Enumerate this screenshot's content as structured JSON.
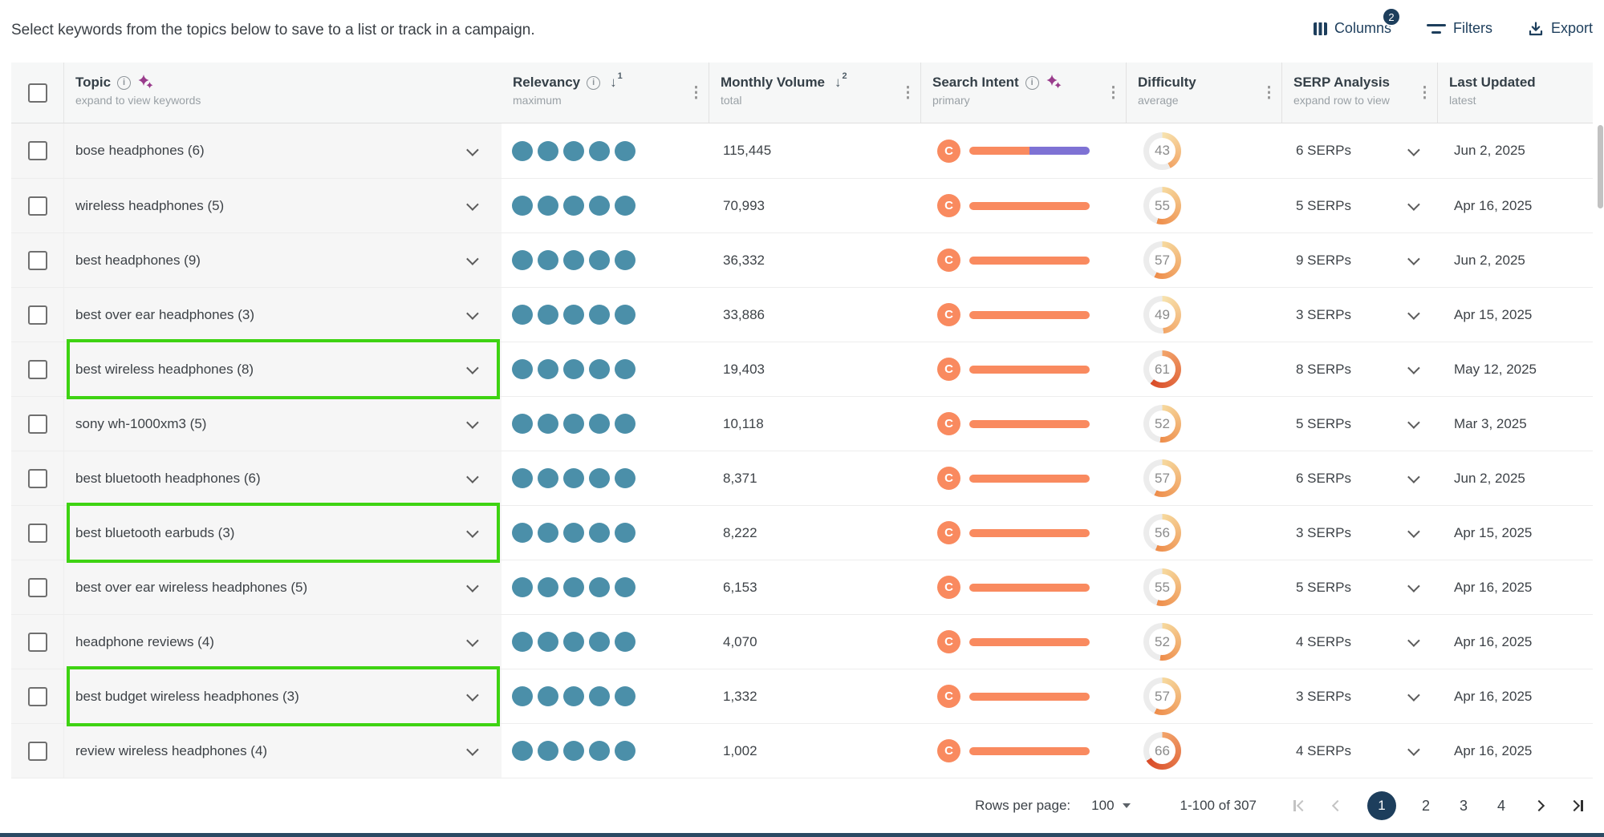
{
  "intro": "Select keywords from the topics below to save to a list or track in a campaign.",
  "toolbar": {
    "columns": {
      "label": "Columns",
      "badge": "2",
      "icon": "columns-icon"
    },
    "filters": {
      "label": "Filters",
      "icon": "filter-icon"
    },
    "export": {
      "label": "Export",
      "icon": "download-icon"
    }
  },
  "table": {
    "header": {
      "topic": {
        "label": "Topic",
        "subtitle": "expand to view keywords",
        "icons": [
          "info-icon",
          "sparkles-icon"
        ]
      },
      "relevancy": {
        "label": "Relevancy",
        "subtitle": "maximum",
        "icons": [
          "info-icon",
          "sort-desc-arrow-icon"
        ],
        "sort_rank": "1"
      },
      "volume": {
        "label": "Monthly Volume",
        "subtitle": "total",
        "icons": [
          "sort-desc-arrow-icon"
        ],
        "sort_rank": "2"
      },
      "intent": {
        "label": "Search Intent",
        "subtitle": "primary",
        "icons": [
          "info-icon",
          "sparkles-icon"
        ]
      },
      "difficulty": {
        "label": "Difficulty",
        "subtitle": "average"
      },
      "serp": {
        "label": "SERP Analysis",
        "subtitle": "expand row to view"
      },
      "updated": {
        "label": "Last Updated",
        "subtitle": "latest"
      }
    },
    "rows": [
      {
        "topic": "bose headphones (6)",
        "relevancy_dots": 5,
        "volume": "115,445",
        "intent_primary": "C",
        "intent_segments": [
          {
            "color": "orange",
            "pct": 50
          },
          {
            "color": "purple",
            "pct": 50
          }
        ],
        "difficulty": 43,
        "serps": "6 SERPs",
        "updated": "Jun 2, 2025",
        "highlighted": false
      },
      {
        "topic": "wireless headphones (5)",
        "relevancy_dots": 5,
        "volume": "70,993",
        "intent_primary": "C",
        "intent_segments": [
          {
            "color": "orange",
            "pct": 100
          }
        ],
        "difficulty": 55,
        "serps": "5 SERPs",
        "updated": "Apr 16, 2025",
        "highlighted": false
      },
      {
        "topic": "best headphones (9)",
        "relevancy_dots": 5,
        "volume": "36,332",
        "intent_primary": "C",
        "intent_segments": [
          {
            "color": "orange",
            "pct": 100
          }
        ],
        "difficulty": 57,
        "serps": "9 SERPs",
        "updated": "Jun 2, 2025",
        "highlighted": false
      },
      {
        "topic": "best over ear headphones (3)",
        "relevancy_dots": 5,
        "volume": "33,886",
        "intent_primary": "C",
        "intent_segments": [
          {
            "color": "orange",
            "pct": 100
          }
        ],
        "difficulty": 49,
        "serps": "3 SERPs",
        "updated": "Apr 15, 2025",
        "highlighted": false
      },
      {
        "topic": "best wireless headphones (8)",
        "relevancy_dots": 5,
        "volume": "19,403",
        "intent_primary": "C",
        "intent_segments": [
          {
            "color": "orange",
            "pct": 100
          }
        ],
        "difficulty": 61,
        "serps": "8 SERPs",
        "updated": "May 12, 2025",
        "highlighted": true
      },
      {
        "topic": "sony wh-1000xm3 (5)",
        "relevancy_dots": 5,
        "volume": "10,118",
        "intent_primary": "C",
        "intent_segments": [
          {
            "color": "orange",
            "pct": 100
          }
        ],
        "difficulty": 52,
        "serps": "5 SERPs",
        "updated": "Mar 3, 2025",
        "highlighted": false
      },
      {
        "topic": "best bluetooth headphones (6)",
        "relevancy_dots": 5,
        "volume": "8,371",
        "intent_primary": "C",
        "intent_segments": [
          {
            "color": "orange",
            "pct": 100
          }
        ],
        "difficulty": 57,
        "serps": "6 SERPs",
        "updated": "Jun 2, 2025",
        "highlighted": false
      },
      {
        "topic": "best bluetooth earbuds (3)",
        "relevancy_dots": 5,
        "volume": "8,222",
        "intent_primary": "C",
        "intent_segments": [
          {
            "color": "orange",
            "pct": 100
          }
        ],
        "difficulty": 56,
        "serps": "3 SERPs",
        "updated": "Apr 15, 2025",
        "highlighted": true
      },
      {
        "topic": "best over ear wireless headphones (5)",
        "relevancy_dots": 5,
        "volume": "6,153",
        "intent_primary": "C",
        "intent_segments": [
          {
            "color": "orange",
            "pct": 100
          }
        ],
        "difficulty": 55,
        "serps": "5 SERPs",
        "updated": "Apr 16, 2025",
        "highlighted": false
      },
      {
        "topic": "headphone reviews (4)",
        "relevancy_dots": 5,
        "volume": "4,070",
        "intent_primary": "C",
        "intent_segments": [
          {
            "color": "orange",
            "pct": 100
          }
        ],
        "difficulty": 52,
        "serps": "4 SERPs",
        "updated": "Apr 16, 2025",
        "highlighted": false
      },
      {
        "topic": "best budget wireless headphones (3)",
        "relevancy_dots": 5,
        "volume": "1,332",
        "intent_primary": "C",
        "intent_segments": [
          {
            "color": "orange",
            "pct": 100
          }
        ],
        "difficulty": 57,
        "serps": "3 SERPs",
        "updated": "Apr 16, 2025",
        "highlighted": true
      },
      {
        "topic": "review wireless headphones (4)",
        "relevancy_dots": 5,
        "volume": "1,002",
        "intent_primary": "C",
        "intent_segments": [
          {
            "color": "orange",
            "pct": 100
          }
        ],
        "difficulty": 66,
        "serps": "4 SERPs",
        "updated": "Apr 16, 2025",
        "highlighted": false
      }
    ]
  },
  "pagination": {
    "rows_per_page_label": "Rows per page:",
    "rows_per_page_value": "100",
    "range_label": "1-100 of 307",
    "pages": {
      "p1": "1",
      "p2": "2",
      "p3": "3",
      "p4": "4"
    },
    "current_page": "1"
  },
  "colors": {
    "navy": "#1d3e5c",
    "intent_orange": "#f98a5f",
    "intent_purple": "#7e72d4",
    "relevancy_dot_teal": "#4b8fa9",
    "highlight_green": "#3ed312",
    "gauge_track": "#ececec",
    "gauge_low": [
      "#f7e3af",
      "#f2a566"
    ],
    "gauge_mid": [
      "#f6d99e",
      "#ee8c4a"
    ],
    "gauge_high": [
      "#f2a46a",
      "#d94b28"
    ]
  }
}
